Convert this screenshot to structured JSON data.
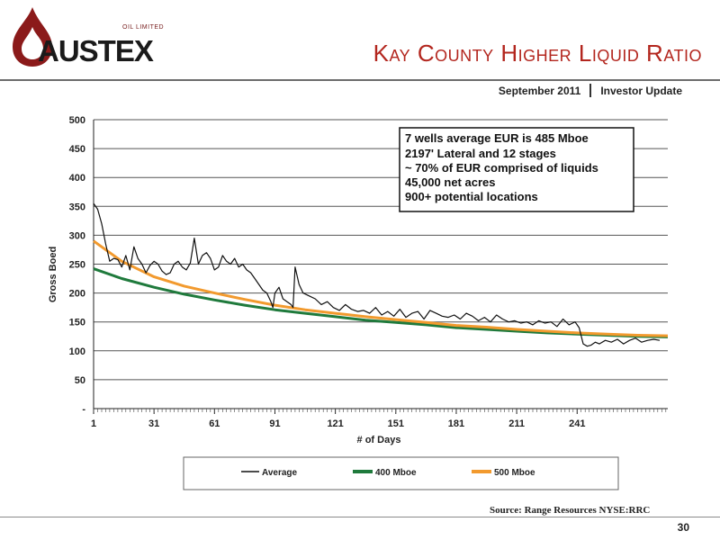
{
  "brand": {
    "name": "AUSTEX",
    "tagline": "OIL LIMITED"
  },
  "header": {
    "title": "Kay County Higher Liquid Ratio",
    "date": "September 2011",
    "doc_type": "Investor Update"
  },
  "footer": {
    "source": "Source: Range Resources NYSE:RRC",
    "page_number": "30"
  },
  "colors": {
    "title": "#b3261e",
    "average": "#111111",
    "mboe400": "#1f7a3c",
    "mboe500": "#f29a2e"
  },
  "chart_data": {
    "type": "line",
    "xlabel": "# of Days",
    "ylabel": "Gross Boed",
    "xlim": [
      1,
      286
    ],
    "ylim": [
      0,
      500
    ],
    "x_ticks": [
      1,
      31,
      61,
      91,
      121,
      151,
      181,
      211,
      241
    ],
    "y_ticks": [
      {
        "value": 0,
        "label": "-"
      },
      {
        "value": 50,
        "label": "50"
      },
      {
        "value": 100,
        "label": "100"
      },
      {
        "value": 150,
        "label": "150"
      },
      {
        "value": 200,
        "label": "200"
      },
      {
        "value": 250,
        "label": "250"
      },
      {
        "value": 300,
        "label": "300"
      },
      {
        "value": 350,
        "label": "350"
      },
      {
        "value": 400,
        "label": "400"
      },
      {
        "value": 450,
        "label": "450"
      },
      {
        "value": 500,
        "label": "500"
      }
    ],
    "grid": "horizontal",
    "legend_position": "bottom",
    "annotation_lines": [
      "7 wells average EUR is 485 Mboe",
      "2197' Lateral and 12 stages",
      "~ 70% of EUR comprised of liquids",
      "45,000 net acres",
      "900+ potential locations"
    ],
    "series": [
      {
        "name": "Average",
        "x": [
          1,
          3,
          5,
          7,
          9,
          11,
          13,
          15,
          17,
          19,
          21,
          23,
          25,
          27,
          29,
          31,
          33,
          35,
          37,
          39,
          41,
          43,
          45,
          47,
          49,
          51,
          53,
          55,
          57,
          59,
          61,
          63,
          65,
          67,
          69,
          71,
          73,
          75,
          77,
          79,
          81,
          83,
          85,
          87,
          89,
          90,
          91,
          93,
          95,
          97,
          99,
          100,
          101,
          103,
          105,
          108,
          111,
          114,
          117,
          120,
          123,
          126,
          129,
          132,
          135,
          138,
          141,
          144,
          147,
          150,
          153,
          156,
          159,
          162,
          165,
          168,
          171,
          174,
          177,
          180,
          183,
          186,
          189,
          192,
          195,
          198,
          201,
          204,
          207,
          210,
          213,
          216,
          219,
          222,
          225,
          228,
          231,
          234,
          237,
          240,
          242,
          244,
          246,
          248,
          250,
          252,
          255,
          258,
          261,
          264,
          267,
          270,
          273,
          276,
          279,
          282
        ],
        "values": [
          355,
          345,
          320,
          285,
          255,
          260,
          258,
          245,
          265,
          240,
          280,
          260,
          250,
          235,
          248,
          255,
          250,
          238,
          232,
          235,
          250,
          255,
          245,
          240,
          252,
          295,
          250,
          265,
          270,
          260,
          240,
          245,
          265,
          255,
          250,
          260,
          245,
          250,
          240,
          235,
          225,
          215,
          205,
          200,
          185,
          175,
          200,
          210,
          190,
          185,
          180,
          175,
          245,
          215,
          200,
          195,
          190,
          180,
          185,
          175,
          170,
          180,
          172,
          168,
          170,
          165,
          175,
          162,
          168,
          160,
          172,
          158,
          165,
          168,
          155,
          170,
          165,
          160,
          158,
          162,
          155,
          165,
          160,
          152,
          158,
          150,
          162,
          155,
          150,
          152,
          148,
          150,
          145,
          152,
          148,
          150,
          142,
          155,
          145,
          150,
          140,
          112,
          108,
          110,
          115,
          112,
          118,
          115,
          120,
          112,
          118,
          122,
          115,
          118,
          120,
          118
        ]
      },
      {
        "name": "400 Mboe",
        "x": [
          1,
          15,
          31,
          46,
          61,
          76,
          91,
          106,
          121,
          136,
          151,
          166,
          181,
          196,
          211,
          226,
          241,
          256,
          271,
          286
        ],
        "values": [
          242,
          225,
          210,
          198,
          188,
          179,
          171,
          165,
          159,
          153,
          149,
          145,
          140,
          137,
          134,
          131,
          129,
          127,
          125,
          124
        ]
      },
      {
        "name": "500 Mboe",
        "x": [
          1,
          15,
          31,
          46,
          61,
          76,
          91,
          106,
          121,
          136,
          151,
          166,
          181,
          196,
          211,
          226,
          241,
          256,
          271,
          286
        ],
        "values": [
          290,
          255,
          228,
          212,
          200,
          189,
          179,
          171,
          165,
          159,
          154,
          149,
          144,
          141,
          137,
          134,
          131,
          129,
          127,
          126
        ]
      }
    ]
  }
}
